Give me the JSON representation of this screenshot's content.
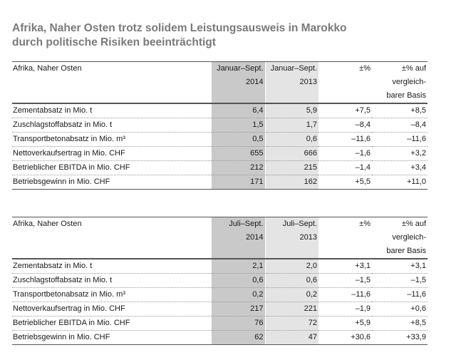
{
  "title": {
    "line1": "Afrika, Naher Osten trotz solidem Leistungsausweis in Marokko",
    "line2": "durch politische Risiken beeinträchtigt"
  },
  "table1": {
    "region": "Afrika, Naher Osten",
    "col1": [
      "Januar–Sept.",
      "2014"
    ],
    "col2": [
      "Januar–Sept.",
      "2013"
    ],
    "col3": [
      "±%"
    ],
    "col4": [
      "±% auf",
      "vergleich-",
      "barer Basis"
    ],
    "rows": [
      {
        "label": "Zementabsatz in Mio. t",
        "v2014": "6,4",
        "v2013": "5,9",
        "pct": "+7,5",
        "pct_base": "+8,5"
      },
      {
        "label": "Zuschlagstoffabsatz in Mio. t",
        "v2014": "1,5",
        "v2013": "1,7",
        "pct": "–8,4",
        "pct_base": "–8,4"
      },
      {
        "label": "Transportbetonabsatz in Mio. m³",
        "v2014": "0,5",
        "v2013": "0,6",
        "pct": "–11,6",
        "pct_base": "–11,6"
      },
      {
        "label": "Nettoverkaufsertrag in Mio. CHF",
        "v2014": "655",
        "v2013": "666",
        "pct": "–1,6",
        "pct_base": "+3,2"
      },
      {
        "label": "Betrieblicher EBITDA in Mio. CHF",
        "v2014": "212",
        "v2013": "215",
        "pct": "–1,4",
        "pct_base": "+3,4"
      },
      {
        "label": "Betriebsgewinn in Mio. CHF",
        "v2014": "171",
        "v2013": "162",
        "pct": "+5,5",
        "pct_base": "+11,0"
      }
    ]
  },
  "table2": {
    "region": "Afrika, Naher Osten",
    "col1": [
      "Juli–Sept.",
      "2014"
    ],
    "col2": [
      "Juli–Sept.",
      "2013"
    ],
    "col3": [
      "±%"
    ],
    "col4": [
      "±% auf",
      "vergleich-",
      "barer Basis"
    ],
    "rows": [
      {
        "label": "Zementabsatz in Mio. t",
        "v2014": "2,1",
        "v2013": "2,0",
        "pct": "+3,1",
        "pct_base": "+3,1"
      },
      {
        "label": "Zuschlagstoffabsatz in Mio. t",
        "v2014": "0,6",
        "v2013": "0,6",
        "pct": "–1,5",
        "pct_base": "–1,5"
      },
      {
        "label": "Transportbetonabsatz in Mio. m³",
        "v2014": "0,2",
        "v2013": "0,2",
        "pct": "–11,6",
        "pct_base": "–11,6"
      },
      {
        "label": "Nettoverkaufsertrag in Mio. CHF",
        "v2014": "217",
        "v2013": "221",
        "pct": "–1,9",
        "pct_base": "+0,6"
      },
      {
        "label": "Betrieblicher EBITDA in Mio. CHF",
        "v2014": "76",
        "v2013": "72",
        "pct": "+5,9",
        "pct_base": "+8,5"
      },
      {
        "label": "Betriebsgewinn in Mio. CHF",
        "v2014": "62",
        "v2013": "47",
        "pct": "+30,6",
        "pct_base": "+33,9"
      }
    ]
  }
}
